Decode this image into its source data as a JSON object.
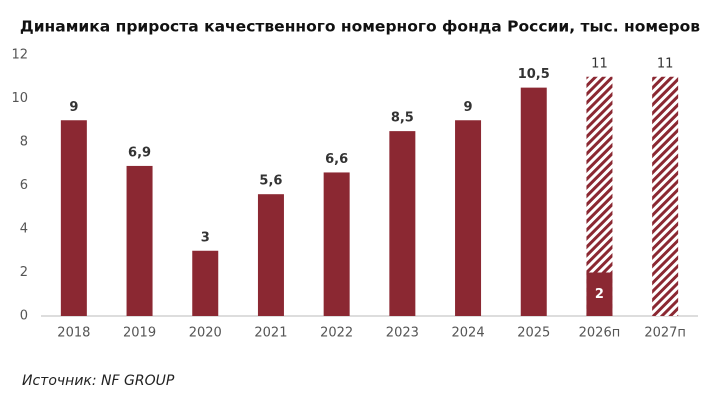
{
  "chart_data": {
    "type": "bar",
    "title": "Динамика прироста качественного номерного фонда России, тыс. номеров",
    "source": "Источник: NF GROUP",
    "categories": [
      "2018",
      "2019",
      "2020",
      "2021",
      "2022",
      "2023",
      "2024",
      "2025",
      "2026п",
      "2027п"
    ],
    "series": [
      {
        "color": "#8b2832",
        "hatch": false,
        "values": [
          9,
          6.9,
          3,
          5.6,
          6.6,
          8.5,
          9,
          10.5,
          2,
          null
        ],
        "value_labels": [
          "9",
          "6,9",
          "3",
          "5,6",
          "6,6",
          "8,5",
          "9",
          "10,5",
          "2",
          null
        ]
      },
      {
        "color": "#8b2832",
        "hatch": true,
        "values": [
          null,
          null,
          null,
          null,
          null,
          null,
          null,
          null,
          11,
          11
        ],
        "value_labels": [
          null,
          null,
          null,
          null,
          null,
          null,
          null,
          null,
          "11",
          "11"
        ]
      }
    ],
    "ylim": [
      0,
      12
    ],
    "yticks": [
      0,
      2,
      4,
      6,
      8,
      10,
      12
    ],
    "grid": false
  }
}
